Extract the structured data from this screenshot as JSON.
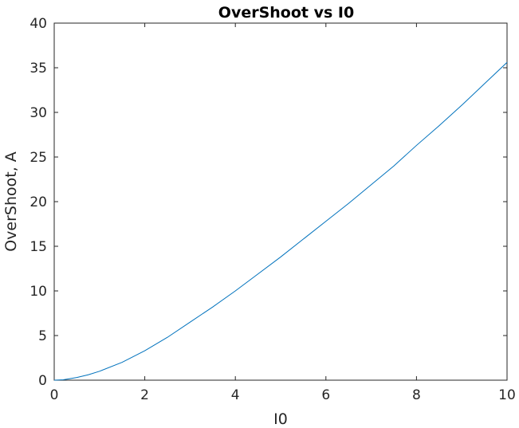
{
  "chart_data": {
    "type": "line",
    "title": "OverShoot vs I0",
    "xlabel": "I0",
    "ylabel": "OverShoot, A",
    "xlim": [
      0,
      10
    ],
    "ylim": [
      0,
      40
    ],
    "xticks": [
      0,
      2,
      4,
      6,
      8,
      10
    ],
    "yticks": [
      0,
      5,
      10,
      15,
      20,
      25,
      30,
      35,
      40
    ],
    "grid": false,
    "legend": "none",
    "series": [
      {
        "color": "#0072bd",
        "x": [
          0,
          0.2,
          0.5,
          0.75,
          1.0,
          1.5,
          2.0,
          2.5,
          3.0,
          3.5,
          4.0,
          4.5,
          5.0,
          5.5,
          6.0,
          6.5,
          7.0,
          7.5,
          8.0,
          8.5,
          9.0,
          9.5,
          10.0
        ],
        "y": [
          0,
          0.05,
          0.3,
          0.6,
          1.0,
          2.0,
          3.3,
          4.8,
          6.5,
          8.2,
          10.0,
          11.9,
          13.8,
          15.8,
          17.8,
          19.8,
          21.9,
          24.0,
          26.3,
          28.5,
          30.8,
          33.2,
          35.6
        ]
      }
    ]
  }
}
